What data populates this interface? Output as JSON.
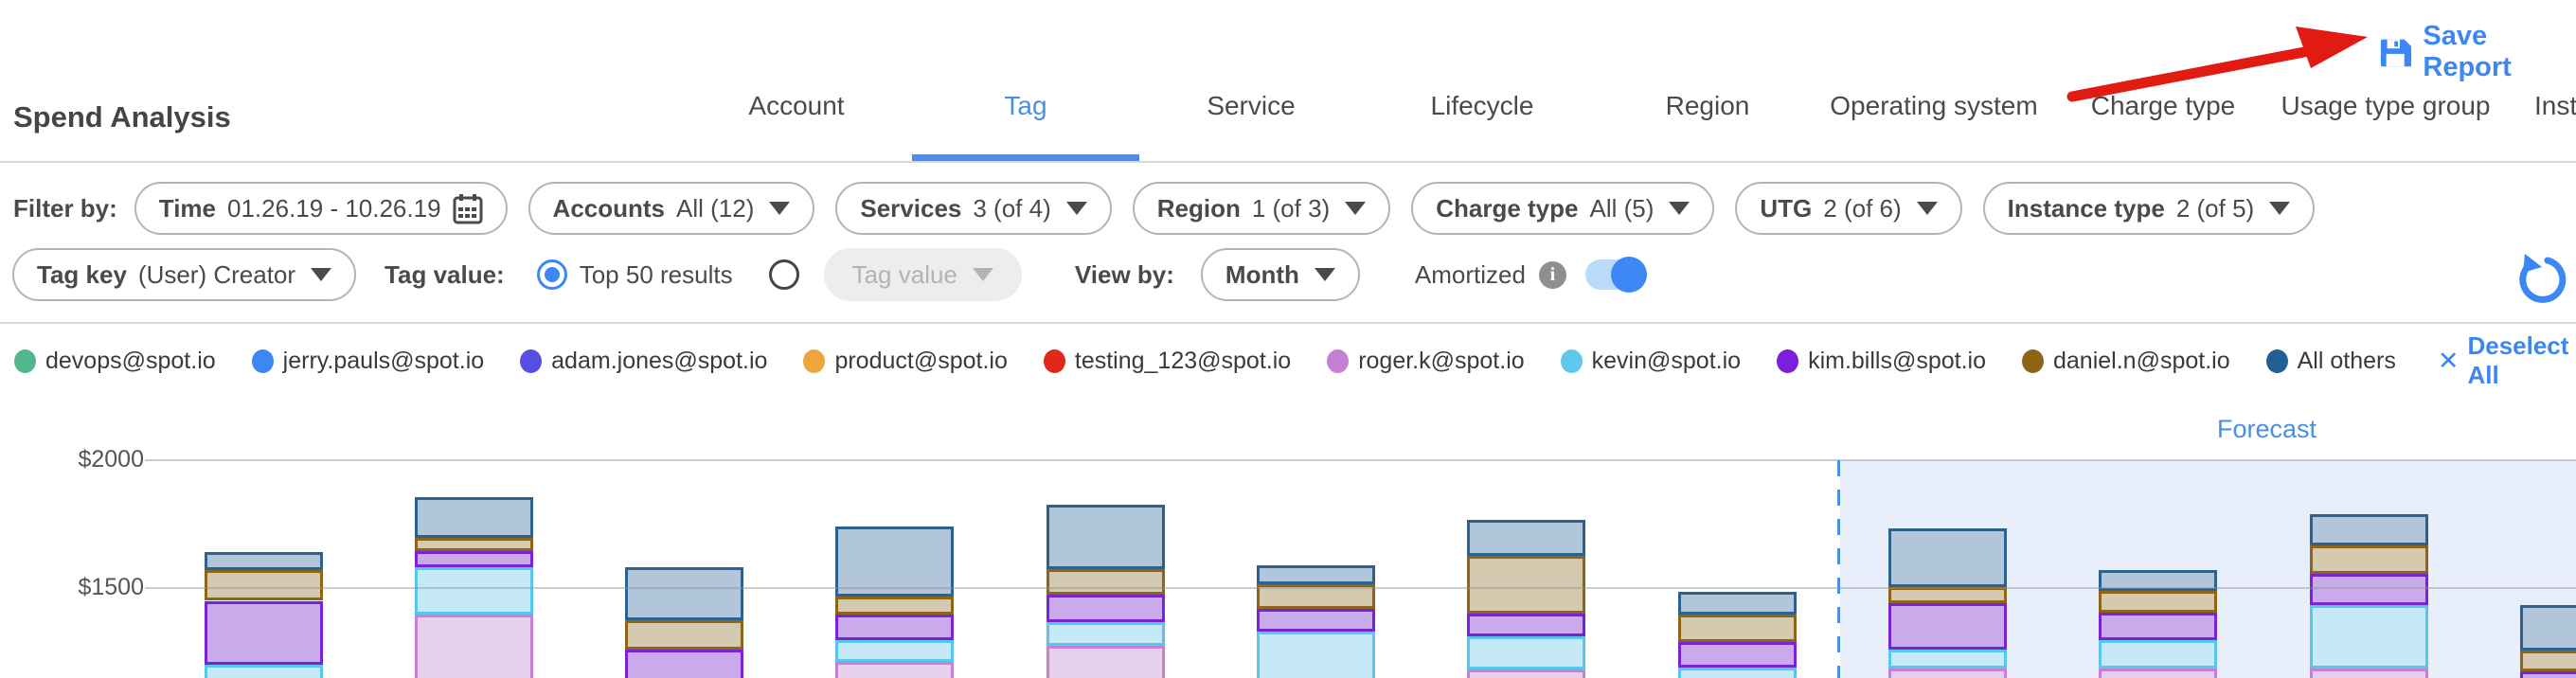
{
  "header": {
    "title": "Spend Analysis",
    "tabs": [
      {
        "label": "Account",
        "active": false
      },
      {
        "label": "Tag",
        "active": true
      },
      {
        "label": "Service",
        "active": false
      },
      {
        "label": "Lifecycle",
        "active": false
      },
      {
        "label": "Region",
        "active": false
      },
      {
        "label": "Operating system",
        "active": false
      },
      {
        "label": "Charge type",
        "active": false
      },
      {
        "label": "Usage type group",
        "active": false
      },
      {
        "label": "Inst",
        "active": false
      }
    ],
    "save_report_label": "Save Report"
  },
  "filters": {
    "filter_by_label": "Filter by:",
    "row1": [
      {
        "key": "time",
        "label": "Time",
        "value": "01.26.19 - 10.26.19",
        "icon": "calendar"
      },
      {
        "key": "accounts",
        "label": "Accounts",
        "value": "All (12)",
        "icon": "caret"
      },
      {
        "key": "services",
        "label": "Services",
        "value": "3 (of 4)",
        "icon": "caret"
      },
      {
        "key": "region",
        "label": "Region",
        "value": "1 (of 3)",
        "icon": "caret"
      },
      {
        "key": "charge-type",
        "label": "Charge type",
        "value": "All (5)",
        "icon": "caret"
      },
      {
        "key": "utg",
        "label": "UTG",
        "value": "2 (of 6)",
        "icon": "caret"
      },
      {
        "key": "instance-type",
        "label": "Instance type",
        "value": "2 (of 5)",
        "icon": "caret"
      }
    ],
    "row2": {
      "tag_key": {
        "label": "Tag key",
        "value": "(User) Creator"
      },
      "tag_value_label": "Tag value:",
      "radio_top50": {
        "label": "Top 50 results",
        "selected": true
      },
      "radio_custom": {
        "selected": false
      },
      "tag_value_dropdown": {
        "label": "Tag value",
        "disabled": true
      },
      "view_by_label": "View by:",
      "view_by_value": "Month",
      "amortized_label": "Amortized",
      "amortized_toggle_on": true
    }
  },
  "legend": {
    "items": [
      {
        "label": "devops@spot.io",
        "color": "#53b78e"
      },
      {
        "label": "jerry.pauls@spot.io",
        "color": "#3d87f5"
      },
      {
        "label": "adam.jones@spot.io",
        "color": "#584de2"
      },
      {
        "label": "product@spot.io",
        "color": "#eda63e"
      },
      {
        "label": "testing_123@spot.io",
        "color": "#e0281c"
      },
      {
        "label": "roger.k@spot.io",
        "color": "#c57fd5"
      },
      {
        "label": "kevin@spot.io",
        "color": "#5fc8ec"
      },
      {
        "label": "kim.bills@spot.io",
        "color": "#7b1fd8"
      },
      {
        "label": "daniel.n@spot.io",
        "color": "#8e6516"
      },
      {
        "label": "All others",
        "color": "#215f94"
      }
    ],
    "deselect_icon": "✕",
    "deselect_label": "Deselect All"
  },
  "chart_data": {
    "type": "bar",
    "stacked": true,
    "title": "",
    "xlabel": "",
    "ylabel": "",
    "y_ticks": [
      "$2000",
      "$1500"
    ],
    "gridline_values": [
      2000,
      1500
    ],
    "visible_ylim": [
      1150,
      2050
    ],
    "grid": true,
    "legend_position": "top",
    "forecast_label": "Forecast",
    "forecast_starts_after_bar": 8,
    "series_colors": {
      "All others": {
        "fill": "#b1c6db",
        "border": "#2d628f"
      },
      "daniel.n@spot.io": {
        "fill": "#d3c9ae",
        "border": "#8e6516"
      },
      "kim.bills@spot.io": {
        "fill": "#c9abeb",
        "border": "#7a22d8"
      },
      "kevin@spot.io": {
        "fill": "#c5e9f7",
        "border": "#58c7ec"
      },
      "roger.k@spot.io": {
        "fill": "#e5d1ec",
        "border": "#c97fd6"
      }
    },
    "bars": [
      {
        "index": 1,
        "forecast": false,
        "segments": [
          {
            "series": "All others",
            "from": 1640,
            "to": 1570
          },
          {
            "series": "daniel.n@spot.io",
            "from": 1570,
            "to": 1450
          },
          {
            "series": "kim.bills@spot.io",
            "from": 1450,
            "to": 1200
          },
          {
            "series": "kevin@spot.io",
            "from": 1200,
            "to": 1050
          }
        ]
      },
      {
        "index": 2,
        "forecast": false,
        "segments": [
          {
            "series": "All others",
            "from": 1855,
            "to": 1695
          },
          {
            "series": "daniel.n@spot.io",
            "from": 1695,
            "to": 1645
          },
          {
            "series": "kim.bills@spot.io",
            "from": 1645,
            "to": 1580
          },
          {
            "series": "kevin@spot.io",
            "from": 1580,
            "to": 1395
          },
          {
            "series": "roger.k@spot.io",
            "from": 1395,
            "to": 1050
          }
        ]
      },
      {
        "index": 3,
        "forecast": false,
        "segments": [
          {
            "series": "All others",
            "from": 1580,
            "to": 1375
          },
          {
            "series": "daniel.n@spot.io",
            "from": 1375,
            "to": 1260
          },
          {
            "series": "kim.bills@spot.io",
            "from": 1260,
            "to": 1050
          }
        ]
      },
      {
        "index": 4,
        "forecast": false,
        "segments": [
          {
            "series": "All others",
            "from": 1740,
            "to": 1465
          },
          {
            "series": "daniel.n@spot.io",
            "from": 1465,
            "to": 1395
          },
          {
            "series": "kim.bills@spot.io",
            "from": 1395,
            "to": 1295
          },
          {
            "series": "kevin@spot.io",
            "from": 1295,
            "to": 1210
          },
          {
            "series": "roger.k@spot.io",
            "from": 1210,
            "to": 1050
          }
        ]
      },
      {
        "index": 5,
        "forecast": false,
        "segments": [
          {
            "series": "All others",
            "from": 1825,
            "to": 1575
          },
          {
            "series": "daniel.n@spot.io",
            "from": 1575,
            "to": 1475
          },
          {
            "series": "kim.bills@spot.io",
            "from": 1475,
            "to": 1365
          },
          {
            "series": "kevin@spot.io",
            "from": 1365,
            "to": 1275
          },
          {
            "series": "roger.k@spot.io",
            "from": 1275,
            "to": 1050
          }
        ]
      },
      {
        "index": 6,
        "forecast": false,
        "segments": [
          {
            "series": "All others",
            "from": 1590,
            "to": 1515
          },
          {
            "series": "daniel.n@spot.io",
            "from": 1515,
            "to": 1420
          },
          {
            "series": "kim.bills@spot.io",
            "from": 1420,
            "to": 1330
          },
          {
            "series": "kevin@spot.io",
            "from": 1330,
            "to": 1050
          }
        ]
      },
      {
        "index": 7,
        "forecast": false,
        "segments": [
          {
            "series": "All others",
            "from": 1765,
            "to": 1625
          },
          {
            "series": "daniel.n@spot.io",
            "from": 1625,
            "to": 1400
          },
          {
            "series": "kim.bills@spot.io",
            "from": 1400,
            "to": 1310
          },
          {
            "series": "kevin@spot.io",
            "from": 1310,
            "to": 1180
          },
          {
            "series": "roger.k@spot.io",
            "from": 1180,
            "to": 1050
          }
        ]
      },
      {
        "index": 8,
        "forecast": false,
        "segments": [
          {
            "series": "All others",
            "from": 1485,
            "to": 1395
          },
          {
            "series": "daniel.n@spot.io",
            "from": 1395,
            "to": 1290
          },
          {
            "series": "kim.bills@spot.io",
            "from": 1290,
            "to": 1190
          },
          {
            "series": "kevin@spot.io",
            "from": 1190,
            "to": 1050
          }
        ]
      },
      {
        "index": 9,
        "forecast": true,
        "segments": [
          {
            "series": "All others",
            "from": 1735,
            "to": 1505
          },
          {
            "series": "daniel.n@spot.io",
            "from": 1505,
            "to": 1440
          },
          {
            "series": "kim.bills@spot.io",
            "from": 1440,
            "to": 1260
          },
          {
            "series": "kevin@spot.io",
            "from": 1260,
            "to": 1185
          },
          {
            "series": "roger.k@spot.io",
            "from": 1185,
            "to": 1050
          }
        ]
      },
      {
        "index": 10,
        "forecast": true,
        "segments": [
          {
            "series": "All others",
            "from": 1570,
            "to": 1490
          },
          {
            "series": "daniel.n@spot.io",
            "from": 1490,
            "to": 1405
          },
          {
            "series": "kim.bills@spot.io",
            "from": 1405,
            "to": 1295
          },
          {
            "series": "kevin@spot.io",
            "from": 1295,
            "to": 1185
          },
          {
            "series": "roger.k@spot.io",
            "from": 1185,
            "to": 1050
          }
        ]
      },
      {
        "index": 11,
        "forecast": true,
        "segments": [
          {
            "series": "All others",
            "from": 1790,
            "to": 1665
          },
          {
            "series": "daniel.n@spot.io",
            "from": 1665,
            "to": 1555
          },
          {
            "series": "kim.bills@spot.io",
            "from": 1555,
            "to": 1435
          },
          {
            "series": "kevin@spot.io",
            "from": 1435,
            "to": 1185
          },
          {
            "series": "roger.k@spot.io",
            "from": 1185,
            "to": 1050
          }
        ]
      },
      {
        "index": 12,
        "forecast": true,
        "segments": [
          {
            "series": "All others",
            "from": 1435,
            "to": 1255
          },
          {
            "series": "daniel.n@spot.io",
            "from": 1255,
            "to": 1175
          },
          {
            "series": "kim.bills@spot.io",
            "from": 1175,
            "to": 1050
          }
        ]
      }
    ]
  }
}
